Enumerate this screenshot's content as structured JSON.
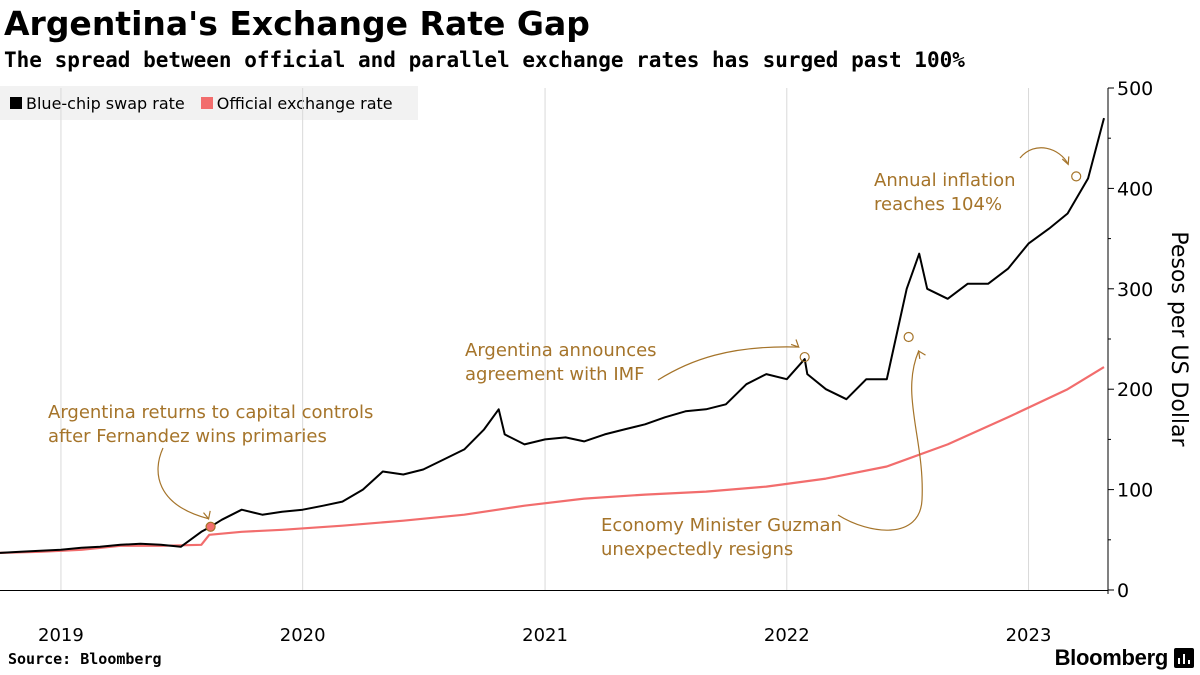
{
  "header": {
    "title": "Argentina's Exchange Rate Gap",
    "subtitle": "The spread between official and parallel exchange rates has surged past 100%"
  },
  "footer": {
    "source": "Source: Bloomberg",
    "brand": "Bloomberg"
  },
  "colors": {
    "blue_chip": "#000000",
    "official": "#f26d6d",
    "annotation": "#a5742a",
    "grid": "#d9d9d9",
    "legend_bg": "#f2f2f2"
  },
  "chart_data": {
    "type": "line",
    "ylabel": "Pesos per US Dollar",
    "ylim": [
      0,
      500
    ],
    "yticks": [
      "0",
      "100",
      "200",
      "300",
      "400",
      "500"
    ],
    "y_axis_position": "right",
    "xlim": [
      "2018-10-01",
      "2023-05-01"
    ],
    "xticks": [
      "2019",
      "2020",
      "2021",
      "2022",
      "2023"
    ],
    "grid": "vertical",
    "legend_position": "top-left",
    "series": [
      {
        "name": "Blue-chip swap rate",
        "color": "#000000",
        "x": [
          "2018-10-01",
          "2018-11-01",
          "2018-12-01",
          "2019-01-01",
          "2019-02-01",
          "2019-03-01",
          "2019-04-01",
          "2019-05-01",
          "2019-06-01",
          "2019-07-01",
          "2019-08-01",
          "2019-08-15",
          "2019-09-01",
          "2019-10-01",
          "2019-11-01",
          "2019-12-01",
          "2020-01-01",
          "2020-02-01",
          "2020-03-01",
          "2020-04-01",
          "2020-05-01",
          "2020-06-01",
          "2020-07-01",
          "2020-08-01",
          "2020-09-01",
          "2020-10-01",
          "2020-10-23",
          "2020-11-01",
          "2020-12-01",
          "2021-01-01",
          "2021-02-01",
          "2021-03-01",
          "2021-04-01",
          "2021-05-01",
          "2021-06-01",
          "2021-07-01",
          "2021-08-01",
          "2021-09-01",
          "2021-10-01",
          "2021-11-01",
          "2021-12-01",
          "2022-01-01",
          "2022-01-28",
          "2022-02-01",
          "2022-03-01",
          "2022-04-01",
          "2022-05-01",
          "2022-06-01",
          "2022-07-01",
          "2022-07-20",
          "2022-08-01",
          "2022-09-01",
          "2022-10-01",
          "2022-11-01",
          "2022-12-01",
          "2023-01-01",
          "2023-02-01",
          "2023-03-01",
          "2023-04-01",
          "2023-04-25"
        ],
        "values": [
          37,
          38,
          39,
          40,
          42,
          43,
          45,
          46,
          45,
          43,
          58,
          63,
          70,
          80,
          75,
          78,
          80,
          84,
          88,
          100,
          118,
          115,
          120,
          130,
          140,
          160,
          180,
          155,
          145,
          150,
          152,
          148,
          155,
          160,
          165,
          172,
          178,
          180,
          185,
          205,
          215,
          210,
          230,
          215,
          200,
          190,
          210,
          210,
          300,
          335,
          300,
          290,
          305,
          305,
          320,
          345,
          360,
          375,
          410,
          470
        ]
      },
      {
        "name": "Official exchange rate",
        "color": "#f26d6d",
        "x": [
          "2018-10-01",
          "2018-12-01",
          "2019-02-01",
          "2019-04-01",
          "2019-06-01",
          "2019-08-01",
          "2019-08-13",
          "2019-10-01",
          "2019-12-01",
          "2020-03-01",
          "2020-06-01",
          "2020-09-01",
          "2020-12-01",
          "2021-03-01",
          "2021-06-01",
          "2021-09-01",
          "2021-12-01",
          "2022-03-01",
          "2022-06-01",
          "2022-09-01",
          "2022-12-01",
          "2023-03-01",
          "2023-04-25"
        ],
        "values": [
          37,
          38,
          40,
          44,
          44,
          45,
          55,
          58,
          60,
          64,
          69,
          75,
          84,
          91,
          95,
          98,
          103,
          111,
          123,
          145,
          172,
          200,
          222
        ]
      }
    ],
    "annotations": [
      {
        "text_lines": [
          "Argentina returns to capital controls",
          "after Fernandez wins primaries"
        ],
        "point": [
          "2019-08-15",
          63
        ]
      },
      {
        "text_lines": [
          "Argentina announces",
          "agreement with IMF"
        ],
        "point": [
          "2022-01-28",
          232
        ]
      },
      {
        "text_lines": [
          "Economy Minister Guzman",
          "unexpectedly resigns"
        ],
        "point": [
          "2022-07-04",
          252
        ]
      },
      {
        "text_lines": [
          "Annual inflation",
          "reaches 104%"
        ],
        "point": [
          "2023-03-14",
          412
        ]
      }
    ]
  }
}
